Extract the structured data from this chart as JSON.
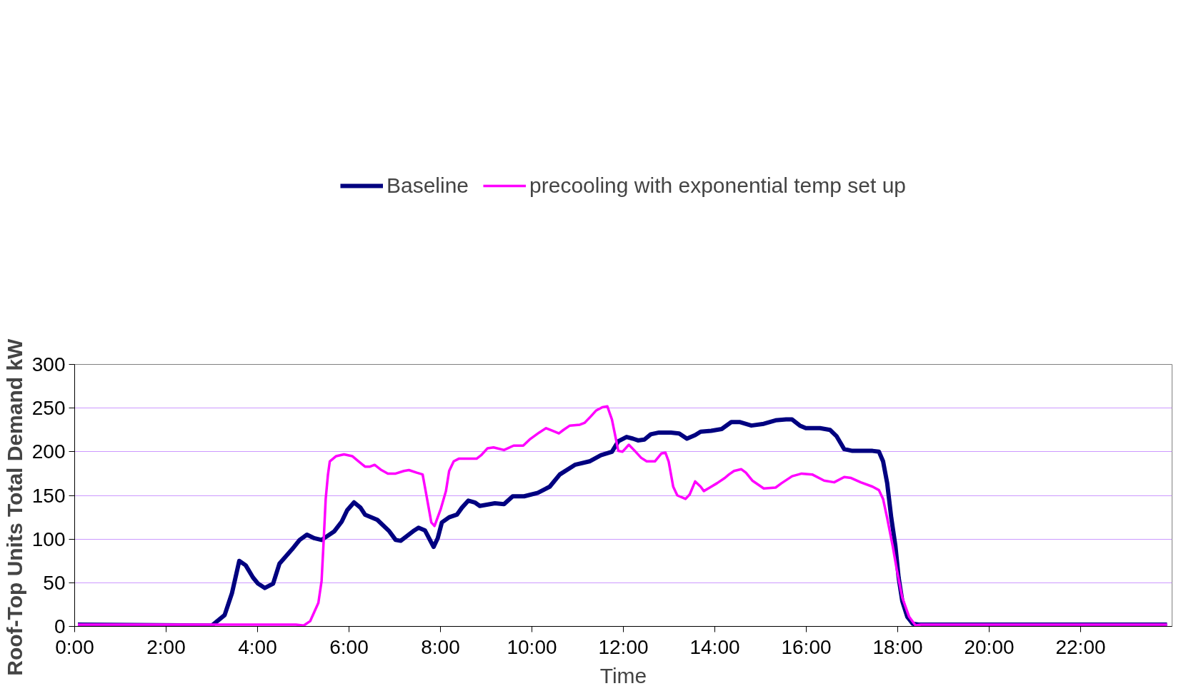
{
  "chart_data": {
    "type": "line",
    "xlabel": "Time",
    "ylabel": "Roof-Top Units Total Demand     kW",
    "xlim": [
      0,
      24
    ],
    "ylim": [
      0,
      300
    ],
    "xticks": [
      {
        "value": 0,
        "label": "0:00"
      },
      {
        "value": 2,
        "label": "2:00"
      },
      {
        "value": 4,
        "label": "4:00"
      },
      {
        "value": 6,
        "label": "6:00"
      },
      {
        "value": 8,
        "label": "8:00"
      },
      {
        "value": 10,
        "label": "10:00"
      },
      {
        "value": 12,
        "label": "12:00"
      },
      {
        "value": 14,
        "label": "14:00"
      },
      {
        "value": 16,
        "label": "16:00"
      },
      {
        "value": 18,
        "label": "18:00"
      },
      {
        "value": 20,
        "label": "20:00"
      },
      {
        "value": 22,
        "label": "22:00"
      }
    ],
    "yticks": [
      0,
      50,
      100,
      150,
      200,
      250,
      300
    ],
    "grid": "y",
    "legend": "top",
    "marker": "none",
    "line_style": "solid",
    "series": [
      {
        "name": "Baseline",
        "color": "#000080",
        "x": [
          0.07,
          3.0,
          3.28,
          3.44,
          3.6,
          3.74,
          3.9,
          4.01,
          4.16,
          4.34,
          4.48,
          4.75,
          4.92,
          5.08,
          5.24,
          5.4,
          5.68,
          5.84,
          5.96,
          6.11,
          6.25,
          6.35,
          6.62,
          6.88,
          7.02,
          7.13,
          7.43,
          7.52,
          7.66,
          7.85,
          7.94,
          8.03,
          8.19,
          8.36,
          8.47,
          8.61,
          8.75,
          8.86,
          9.19,
          9.39,
          9.58,
          9.83,
          10.13,
          10.39,
          10.61,
          10.94,
          11.26,
          11.51,
          11.75,
          11.89,
          12.07,
          12.21,
          12.32,
          12.46,
          12.6,
          12.78,
          13.04,
          13.22,
          13.39,
          13.57,
          13.69,
          13.92,
          14.15,
          14.36,
          14.54,
          14.8,
          15.07,
          15.33,
          15.56,
          15.69,
          15.86,
          15.99,
          16.3,
          16.52,
          16.66,
          16.83,
          17.01,
          17.45,
          17.59,
          17.68,
          17.77,
          17.86,
          17.95,
          18.02,
          18.1,
          18.21,
          18.33,
          18.46,
          23.89
        ],
        "values": [
          2,
          1,
          13,
          38,
          75,
          70,
          56,
          49,
          44,
          49,
          72,
          88,
          99,
          105,
          101,
          99,
          109,
          120,
          133,
          142,
          136,
          128,
          122,
          109,
          99,
          98,
          110,
          113,
          110,
          91,
          101,
          119,
          125,
          128,
          136,
          144,
          142,
          138,
          141,
          140,
          149,
          149,
          153,
          160,
          174,
          185,
          189,
          196,
          200,
          212,
          217,
          215,
          213,
          214,
          220,
          222,
          222,
          221,
          215,
          219,
          223,
          224,
          226,
          234,
          234,
          230,
          232,
          236,
          237,
          237,
          230,
          227,
          227,
          225,
          218,
          203,
          201,
          201,
          200,
          189,
          164,
          124,
          92,
          56,
          29,
          11,
          3,
          2,
          2
        ]
      },
      {
        "name": "precooling with exponential temp set up",
        "color": "#ff00ff",
        "x": [
          0.07,
          4.84,
          5.01,
          5.15,
          5.33,
          5.4,
          5.44,
          5.49,
          5.54,
          5.58,
          5.72,
          5.89,
          6.07,
          6.21,
          6.35,
          6.46,
          6.56,
          6.71,
          6.85,
          7.02,
          7.2,
          7.31,
          7.48,
          7.61,
          7.69,
          7.8,
          7.87,
          8.01,
          8.12,
          8.19,
          8.29,
          8.4,
          8.79,
          8.89,
          9.03,
          9.16,
          9.39,
          9.6,
          9.81,
          9.95,
          10.16,
          10.31,
          10.45,
          10.59,
          10.69,
          10.83,
          11.05,
          11.15,
          11.28,
          11.4,
          11.54,
          11.65,
          11.75,
          11.89,
          11.98,
          12.12,
          12.25,
          12.39,
          12.51,
          12.69,
          12.83,
          12.92,
          12.99,
          13.09,
          13.18,
          13.36,
          13.45,
          13.57,
          13.69,
          13.76,
          13.89,
          14.05,
          14.22,
          14.31,
          14.42,
          14.58,
          14.68,
          14.82,
          15.07,
          15.33,
          15.46,
          15.69,
          15.9,
          16.13,
          16.39,
          16.61,
          16.83,
          16.98,
          17.19,
          17.45,
          17.59,
          17.68,
          17.77,
          17.89,
          17.98,
          18.1,
          18.25,
          18.39,
          18.51,
          23.89
        ],
        "values": [
          2,
          2,
          1,
          6,
          27,
          52,
          92,
          146,
          174,
          189,
          195,
          197,
          195,
          189,
          183,
          183,
          185,
          179,
          175,
          175,
          178,
          179,
          176,
          174,
          151,
          119,
          115,
          135,
          155,
          178,
          189,
          192,
          192,
          196,
          204,
          205,
          202,
          207,
          207,
          214,
          222,
          227,
          224,
          221,
          225,
          230,
          231,
          233,
          240,
          247,
          251,
          252,
          237,
          201,
          200,
          208,
          201,
          193,
          189,
          189,
          198,
          199,
          189,
          160,
          150,
          146,
          151,
          166,
          160,
          155,
          159,
          164,
          170,
          174,
          178,
          180,
          176,
          167,
          158,
          159,
          164,
          172,
          175,
          174,
          167,
          165,
          171,
          170,
          165,
          160,
          156,
          146,
          124,
          92,
          65,
          33,
          11,
          1,
          2,
          2
        ]
      }
    ]
  }
}
